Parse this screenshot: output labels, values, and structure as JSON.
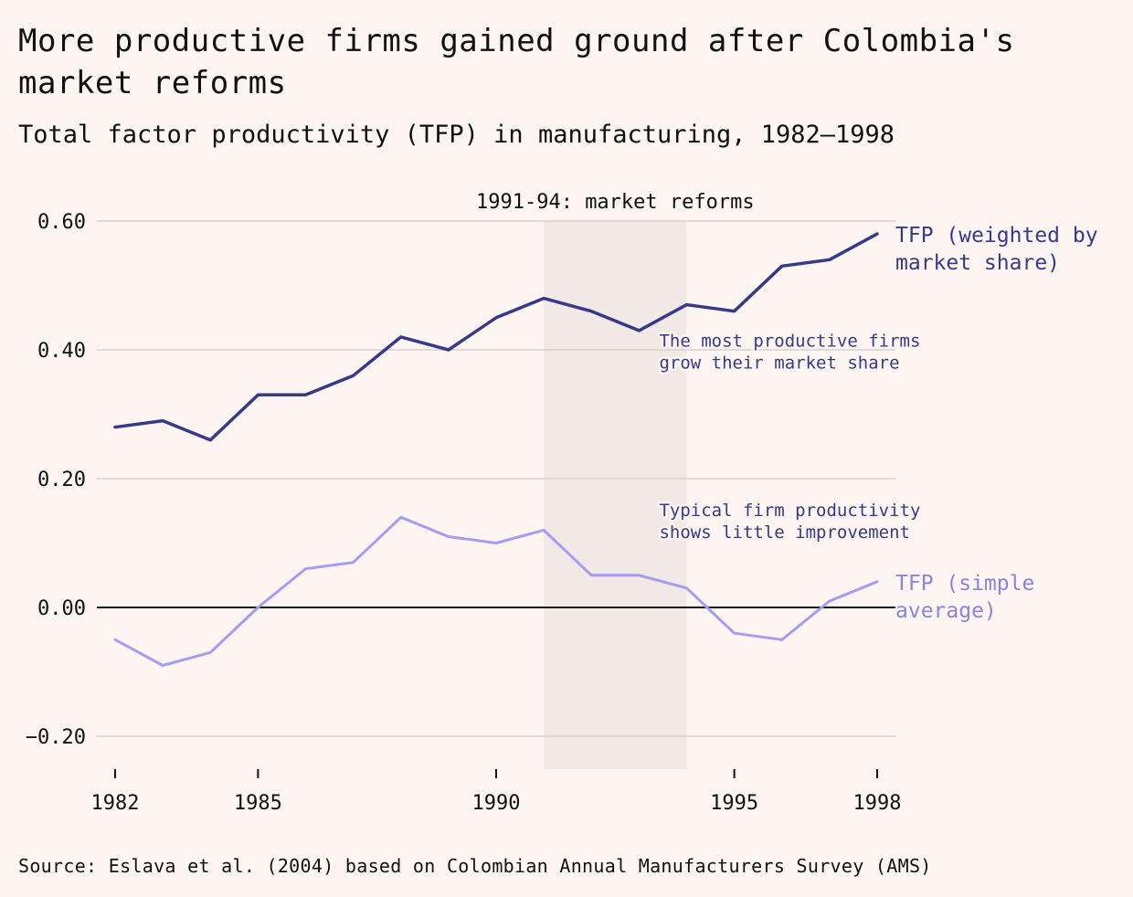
{
  "title": "More productive firms gained ground after Colombia's market reforms",
  "subtitle": "Total factor productivity (TFP) in manufacturing, 1982–1998",
  "source": "Source: Eslava et al. (2004) based on Colombian Annual Manufacturers Survey (AMS)",
  "colors": {
    "background": "#fdf5f2",
    "weighted": "#363a87",
    "simple": "#a59cf3",
    "shade": "#f1e9e6",
    "grid": "#d9d1cf",
    "zero": "#111111",
    "weighted_label": "#363a87",
    "simple_label": "#8b84dd"
  },
  "chart_data": {
    "type": "line",
    "title": "More productive firms gained ground after Colombia's market reforms",
    "subtitle": "Total factor productivity (TFP) in manufacturing, 1982–1998",
    "xlabel": "",
    "ylabel": "",
    "xlim": [
      1982,
      1998
    ],
    "ylim": [
      -0.25,
      0.6
    ],
    "x": [
      1982,
      1983,
      1984,
      1985,
      1986,
      1987,
      1988,
      1989,
      1990,
      1991,
      1992,
      1993,
      1994,
      1995,
      1996,
      1997,
      1998
    ],
    "x_ticks": [
      1982,
      1985,
      1990,
      1995,
      1998
    ],
    "y_ticks": [
      0.6,
      0.4,
      0.2,
      0.0,
      -0.2
    ],
    "y_tick_labels": [
      "0.60",
      "0.40",
      "0.20",
      "0.00",
      "−0.20"
    ],
    "series": [
      {
        "name": "TFP (weighted by market share)",
        "label_lines": [
          "TFP (weighted by",
          "market share)"
        ],
        "color": "#363a87",
        "values": [
          0.28,
          0.29,
          0.26,
          0.33,
          0.33,
          0.36,
          0.42,
          0.4,
          0.45,
          0.48,
          0.46,
          0.43,
          0.47,
          0.46,
          0.53,
          0.54,
          0.58
        ]
      },
      {
        "name": "TFP (simple average)",
        "label_lines": [
          "TFP (simple",
          "average)"
        ],
        "color": "#a59cf3",
        "values": [
          -0.05,
          -0.09,
          -0.07,
          0.0,
          0.06,
          0.07,
          0.14,
          0.11,
          0.1,
          0.12,
          0.05,
          0.05,
          0.03,
          -0.04,
          -0.05,
          0.01,
          0.04
        ]
      }
    ],
    "shaded_region": {
      "x_start": 1991,
      "x_end": 1994,
      "label": "1991-94: market reforms"
    },
    "annotations": [
      {
        "series": 0,
        "anchor_x": 1993.5,
        "anchor_y": 0.405,
        "lines": [
          "The most productive firms",
          "grow their market share"
        ]
      },
      {
        "series": 1,
        "anchor_x": 1993.5,
        "anchor_y": 0.142,
        "lines": [
          "Typical firm productivity",
          "shows little improvement"
        ]
      }
    ]
  }
}
